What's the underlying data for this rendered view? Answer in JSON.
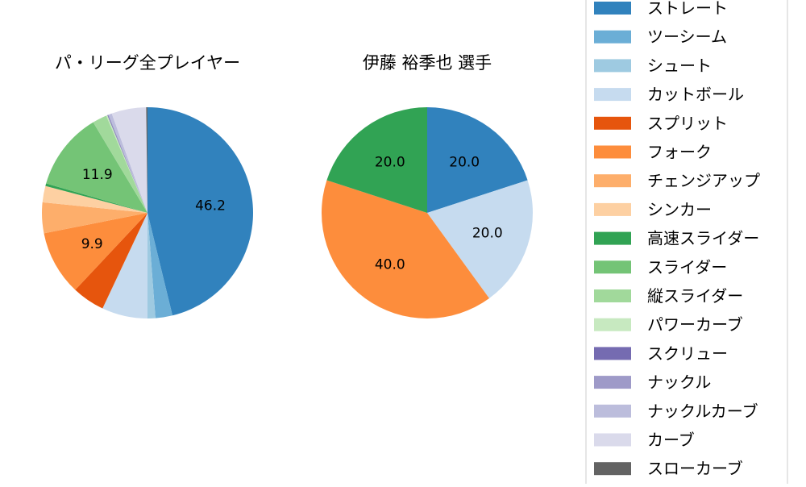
{
  "chart_data": [
    {
      "type": "pie",
      "title": "パ・リーグ全プレイヤー",
      "slices": [
        {
          "label": "ストレート",
          "value": 46.2,
          "color": "#3182bd",
          "data_label": "46.2"
        },
        {
          "label": "ツーシーム",
          "value": 2.6,
          "color": "#6baed6"
        },
        {
          "label": "シュート",
          "value": 1.2,
          "color": "#9ecae1"
        },
        {
          "label": "カットボール",
          "value": 7.0,
          "color": "#c6dbef"
        },
        {
          "label": "スプリット",
          "value": 5.0,
          "color": "#e6550d"
        },
        {
          "label": "フォーク",
          "value": 9.9,
          "color": "#fd8d3c",
          "data_label": "9.9"
        },
        {
          "label": "チェンジアップ",
          "value": 4.7,
          "color": "#fdae6b"
        },
        {
          "label": "シンカー",
          "value": 2.5,
          "color": "#fdd0a2"
        },
        {
          "label": "高速スライダー",
          "value": 0.4,
          "color": "#31a354"
        },
        {
          "label": "スライダー",
          "value": 11.9,
          "color": "#74c476",
          "data_label": "11.9"
        },
        {
          "label": "縦スライダー",
          "value": 2.2,
          "color": "#a1d99b"
        },
        {
          "label": "パワーカーブ",
          "value": 0.2,
          "color": "#c7e9c0"
        },
        {
          "label": "スクリュー",
          "value": 0.1,
          "color": "#756bb1"
        },
        {
          "label": "ナックル",
          "value": 0.1,
          "color": "#9e9ac8"
        },
        {
          "label": "ナックルカーブ",
          "value": 0.5,
          "color": "#bcbddc"
        },
        {
          "label": "カーブ",
          "value": 5.3,
          "color": "#dadaeb"
        },
        {
          "label": "スローカーブ",
          "value": 0.2,
          "color": "#636363"
        }
      ]
    },
    {
      "type": "pie",
      "title": "伊藤 裕季也  選手",
      "slices": [
        {
          "label": "ストレート",
          "value": 20.0,
          "color": "#3182bd",
          "data_label": "20.0"
        },
        {
          "label": "カットボール",
          "value": 20.0,
          "color": "#c6dbef",
          "data_label": "20.0"
        },
        {
          "label": "フォーク",
          "value": 40.0,
          "color": "#fd8d3c",
          "data_label": "40.0"
        },
        {
          "label": "高速スライダー",
          "value": 20.0,
          "color": "#31a354",
          "data_label": "20.0"
        }
      ]
    }
  ],
  "legend": {
    "placement": "right",
    "entries": [
      {
        "label": "ストレート",
        "color": "#3182bd"
      },
      {
        "label": "ツーシーム",
        "color": "#6baed6"
      },
      {
        "label": "シュート",
        "color": "#9ecae1"
      },
      {
        "label": "カットボール",
        "color": "#c6dbef"
      },
      {
        "label": "スプリット",
        "color": "#e6550d"
      },
      {
        "label": "フォーク",
        "color": "#fd8d3c"
      },
      {
        "label": "チェンジアップ",
        "color": "#fdae6b"
      },
      {
        "label": "シンカー",
        "color": "#fdd0a2"
      },
      {
        "label": "高速スライダー",
        "color": "#31a354"
      },
      {
        "label": "スライダー",
        "color": "#74c476"
      },
      {
        "label": "縦スライダー",
        "color": "#a1d99b"
      },
      {
        "label": "パワーカーブ",
        "color": "#c7e9c0"
      },
      {
        "label": "スクリュー",
        "color": "#756bb1"
      },
      {
        "label": "ナックル",
        "color": "#9e9ac8"
      },
      {
        "label": "ナックルカーブ",
        "color": "#bcbddc"
      },
      {
        "label": "カーブ",
        "color": "#dadaeb"
      },
      {
        "label": "スローカーブ",
        "color": "#636363"
      }
    ]
  }
}
